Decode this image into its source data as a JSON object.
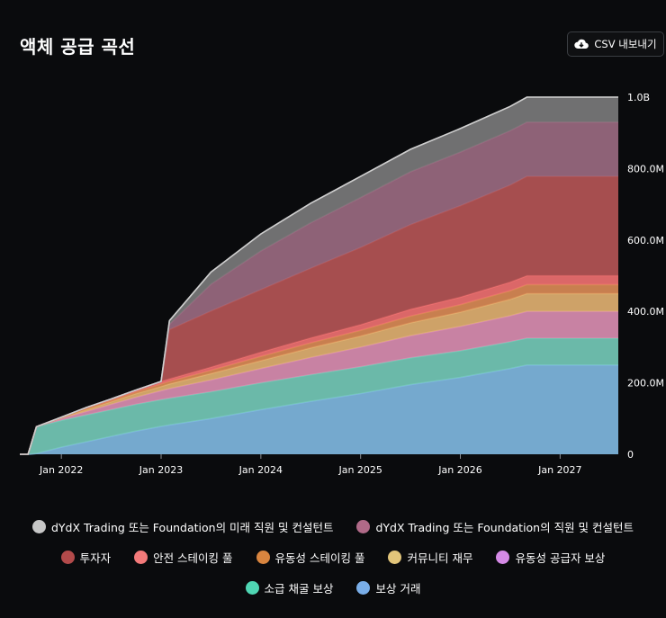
{
  "title": "액체 공급 곡선",
  "export_button": {
    "label": "CSV 내보내기",
    "icon": "cloud-download-icon"
  },
  "chart_data": {
    "type": "area",
    "stacked": true,
    "x_axis": {
      "ticks": [
        "Jan 2022",
        "Jan 2023",
        "Jan 2024",
        "Jan 2025",
        "Jan 2026",
        "Jan 2027"
      ],
      "range": [
        "2021-08",
        "2027-08"
      ]
    },
    "y_axis": {
      "position": "right",
      "ticks": [
        "0",
        "200.0M",
        "400.0M",
        "600.0M",
        "800.0M",
        "1.0B"
      ],
      "range": [
        0,
        1000000000
      ]
    },
    "legend_placement": "bottom",
    "x": [
      "2021-08",
      "2021-09",
      "2021-10",
      "2022-01",
      "2022-04",
      "2022-07",
      "2022-10",
      "2023-01",
      "2023-02",
      "2023-07",
      "2024-01",
      "2024-07",
      "2025-01",
      "2025-07",
      "2026-01",
      "2026-07",
      "2026-09",
      "2027-01",
      "2027-08"
    ],
    "series": [
      {
        "name": "보상 거래",
        "color": "#7fb7de",
        "values": [
          0,
          0,
          2,
          20,
          35,
          50,
          65,
          78,
          82,
          100,
          125,
          148,
          170,
          195,
          215,
          240,
          250,
          250,
          250
        ]
      },
      {
        "name": "소급 채굴 보상",
        "color": "#74c9b6",
        "values": [
          0,
          0,
          75,
          75,
          75,
          75,
          75,
          75,
          75,
          75,
          75,
          75,
          75,
          75,
          75,
          75,
          75,
          75,
          75
        ]
      },
      {
        "name": "유동성 공급자 보상",
        "color": "#d98db0",
        "values": [
          0,
          0,
          0,
          5,
          10,
          15,
          20,
          25,
          27,
          33,
          40,
          48,
          55,
          62,
          68,
          73,
          75,
          75,
          75
        ]
      },
      {
        "name": "커뮤니티 재무",
        "color": "#e0b070",
        "values": [
          0,
          0,
          0,
          2,
          5,
          7,
          10,
          12,
          13,
          18,
          22,
          27,
          31,
          36,
          40,
          46,
          50,
          50,
          50
        ]
      },
      {
        "name": "유동성 스테이킹 풀",
        "color": "#d98a55",
        "values": [
          0,
          0,
          0,
          1,
          3,
          4,
          5,
          7,
          7,
          9,
          12,
          14,
          16,
          19,
          21,
          24,
          25,
          25,
          25
        ]
      },
      {
        "name": "안전 스테이킹 풀",
        "color": "#ee7070",
        "values": [
          0,
          0,
          0,
          1,
          3,
          4,
          5,
          7,
          7,
          9,
          12,
          14,
          16,
          19,
          21,
          24,
          25,
          25,
          25
        ]
      },
      {
        "name": "투자자",
        "color": "#b45555",
        "values": [
          0,
          0,
          0,
          0,
          0,
          0,
          0,
          0,
          138,
          157,
          175,
          195,
          216,
          237,
          256,
          272,
          278,
          278,
          278
        ]
      },
      {
        "name": "dYdX Trading 또는 Foundation의 직원 및 컨설턴트",
        "color": "#9a6a80",
        "values": [
          0,
          0,
          0,
          0,
          0,
          0,
          0,
          0,
          15,
          75,
          108,
          127,
          140,
          148,
          150,
          152,
          152,
          152,
          152
        ]
      },
      {
        "name": "dYdX Trading 또는 Foundation의 미래 직원 및 컨설턴트",
        "color": "#7a7a7a",
        "values": [
          0,
          0,
          0,
          0,
          0,
          0,
          0,
          0,
          10,
          34,
          48,
          55,
          59,
          63,
          66,
          68,
          70,
          70,
          70
        ]
      }
    ],
    "units": "millions"
  },
  "legend_rows": [
    [
      8,
      7
    ],
    [
      6,
      5,
      4,
      3,
      2
    ],
    [
      1,
      0
    ]
  ],
  "legend_colors": {
    "보상 거래": "#7aaee8",
    "소급 채굴 보상": "#4fd6b3",
    "유동성 공급자 보상": "#d58ae6",
    "커뮤니티 재무": "#e2c57a",
    "유동성 스테이킹 풀": "#d9853f",
    "안전 스테이킹 풀": "#f47a7a",
    "투자자": "#b24a4a",
    "dYdX Trading 또는 Foundation의 직원 및 컨설턴트": "#b06a88",
    "dYdX Trading 또는 Foundation의 미래 직원 및 컨설턴트": "#c7c7c7"
  }
}
